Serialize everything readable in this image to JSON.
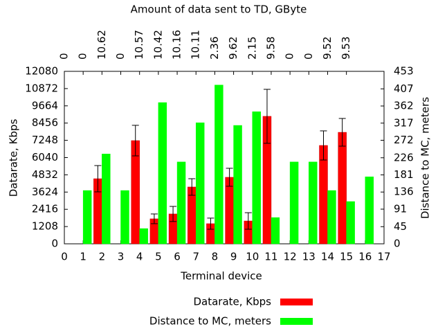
{
  "chart_data": {
    "type": "bar",
    "title": "Amount of data sent to TD, GByte",
    "xlabel": "Terminal device",
    "ylabel": "Datarate, Kbps",
    "y2label": "Distance to MC, meters",
    "x": [
      1,
      2,
      3,
      4,
      5,
      6,
      7,
      8,
      9,
      10,
      11,
      12,
      13,
      14,
      15,
      16
    ],
    "xlim": [
      0,
      17
    ],
    "xticks": [
      0,
      1,
      2,
      3,
      4,
      5,
      6,
      7,
      8,
      9,
      10,
      11,
      12,
      13,
      14,
      15,
      16,
      17
    ],
    "ylim": [
      0,
      12080
    ],
    "yticks": [
      0,
      1208,
      2416,
      3624,
      4832,
      6040,
      7248,
      8456,
      9664,
      10872,
      12080
    ],
    "y2lim": [
      0,
      453
    ],
    "y2ticks": [
      0,
      45,
      91,
      136,
      181,
      226,
      272,
      317,
      362,
      407,
      453
    ],
    "data_sent": {
      "x": [
        0,
        1,
        2,
        3,
        4,
        5,
        6,
        7,
        8,
        9,
        10,
        11,
        12,
        13,
        14,
        15
      ],
      "values": [
        0,
        0,
        10.62,
        0,
        10.57,
        10.42,
        10.16,
        10.11,
        2.36,
        9.62,
        2.15,
        9.58,
        0,
        0,
        9.52,
        9.53
      ]
    },
    "series": [
      {
        "name": "Datarate, Kbps",
        "color": "#ff0000",
        "values": [
          0,
          4560,
          0,
          7230,
          1750,
          2090,
          3980,
          1410,
          4660,
          1600,
          8930,
          0,
          0,
          6890,
          7810,
          0
        ],
        "errors": [
          0,
          920,
          0,
          1070,
          340,
          530,
          580,
          390,
          630,
          580,
          1890,
          0,
          0,
          1020,
          970,
          0
        ]
      },
      {
        "name": "Distance to MC, meters",
        "color": "#00ff00",
        "axis": "y2",
        "values": [
          140,
          236,
          140,
          40,
          371,
          215,
          318,
          417,
          311,
          347,
          69,
          215,
          215,
          140,
          111,
          176
        ]
      }
    ],
    "grid": false
  }
}
